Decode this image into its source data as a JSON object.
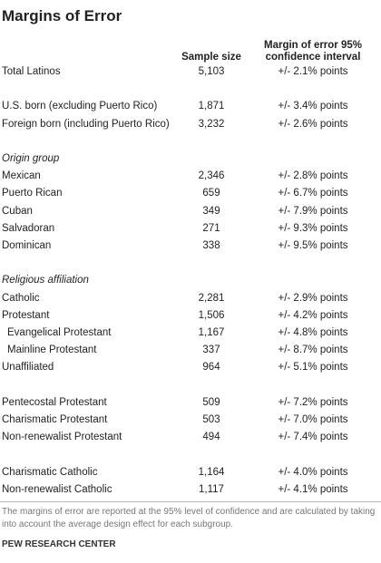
{
  "title": "Margins of Error",
  "columns": [
    "Sample size",
    "Margin of error 95% confidence interval"
  ],
  "groups": [
    {
      "rows": [
        [
          "Total Latinos",
          "5,103",
          "+/- 2.1% points"
        ]
      ]
    },
    {
      "rows": [
        [
          "U.S. born (excluding Puerto Rico)",
          "1,871",
          "+/- 3.4% points"
        ],
        [
          "Foreign born (including Puerto Rico)",
          "3,232",
          "+/- 2.6% points"
        ]
      ]
    },
    {
      "heading": "Origin group",
      "rows": [
        [
          "Mexican",
          "2,346",
          "+/- 2.8% points"
        ],
        [
          "Puerto Rican",
          "659",
          "+/- 6.7% points"
        ],
        [
          "Cuban",
          "349",
          "+/- 7.9% points"
        ],
        [
          "Salvadoran",
          "271",
          "+/- 9.3% points"
        ],
        [
          "Dominican",
          "338",
          "+/- 9.5% points"
        ]
      ]
    },
    {
      "heading": "Religious affiliation",
      "rows": [
        [
          "Catholic",
          "2,281",
          "+/- 2.9% points"
        ],
        [
          "Protestant",
          "1,506",
          "+/- 4.2% points"
        ],
        [
          "Evangelical Protestant",
          "1,167",
          "+/- 4.8% points"
        ],
        [
          "Mainline Protestant",
          "337",
          "+/- 8.7% points"
        ],
        [
          "Unaffiliated",
          "964",
          "+/- 5.1% points"
        ]
      ]
    },
    {
      "rows": [
        [
          "Pentecostal Protestant",
          "509",
          "+/- 7.2% points"
        ],
        [
          "Charismatic Protestant",
          "503",
          "+/- 7.0% points"
        ],
        [
          "Non-renewalist Protestant",
          "494",
          "+/- 7.4% points"
        ]
      ]
    },
    {
      "rows": [
        [
          "Charismatic Catholic",
          "1,164",
          "+/- 4.0% points"
        ],
        [
          "Non-renewalist Catholic",
          "1,117",
          "+/- 4.1% points"
        ]
      ]
    }
  ],
  "note": "The margins of error are reported at the 95% level of confidence and are calculated by taking into account the average design effect for each subgroup.",
  "source": "PEW RESEARCH CENTER"
}
